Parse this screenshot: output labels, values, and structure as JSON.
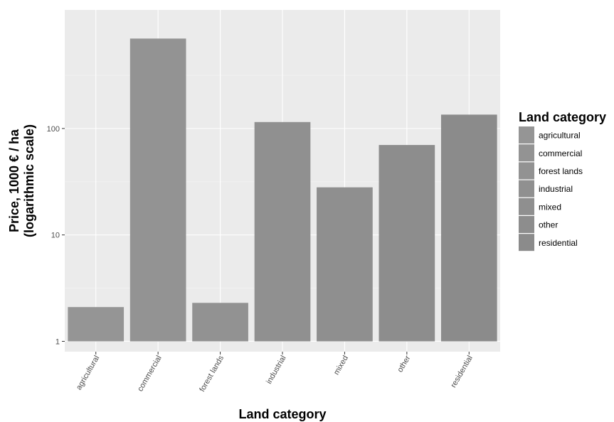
{
  "chart_data": {
    "type": "bar",
    "xlabel": "Land category",
    "ylabel_lines": [
      "Price, 1000 € / ha",
      "(logarithmic scale)"
    ],
    "y_scale": "log10",
    "ylim": [
      0.8,
      1300
    ],
    "y_ticks": [
      1,
      10,
      100
    ],
    "y_tick_labels": [
      "1",
      "10",
      "100"
    ],
    "grid": true,
    "categories": [
      "agricultural",
      "commercial",
      "forest lands",
      "industrial",
      "mixed",
      "other",
      "residential"
    ],
    "values": [
      2.1,
      700,
      2.3,
      115,
      28,
      70,
      135
    ],
    "legend": {
      "title": "Land category",
      "placement": "right",
      "entries": [
        "agricultural",
        "commercial",
        "forest lands",
        "industrial",
        "mixed",
        "other",
        "residential"
      ]
    },
    "colors": {
      "panel": "#ebebeb",
      "grid_major": "#ffffff",
      "bars": [
        "#959595",
        "#939393",
        "#929292",
        "#909090",
        "#8f8f8f",
        "#8d8d8d",
        "#8b8b8b"
      ]
    }
  }
}
